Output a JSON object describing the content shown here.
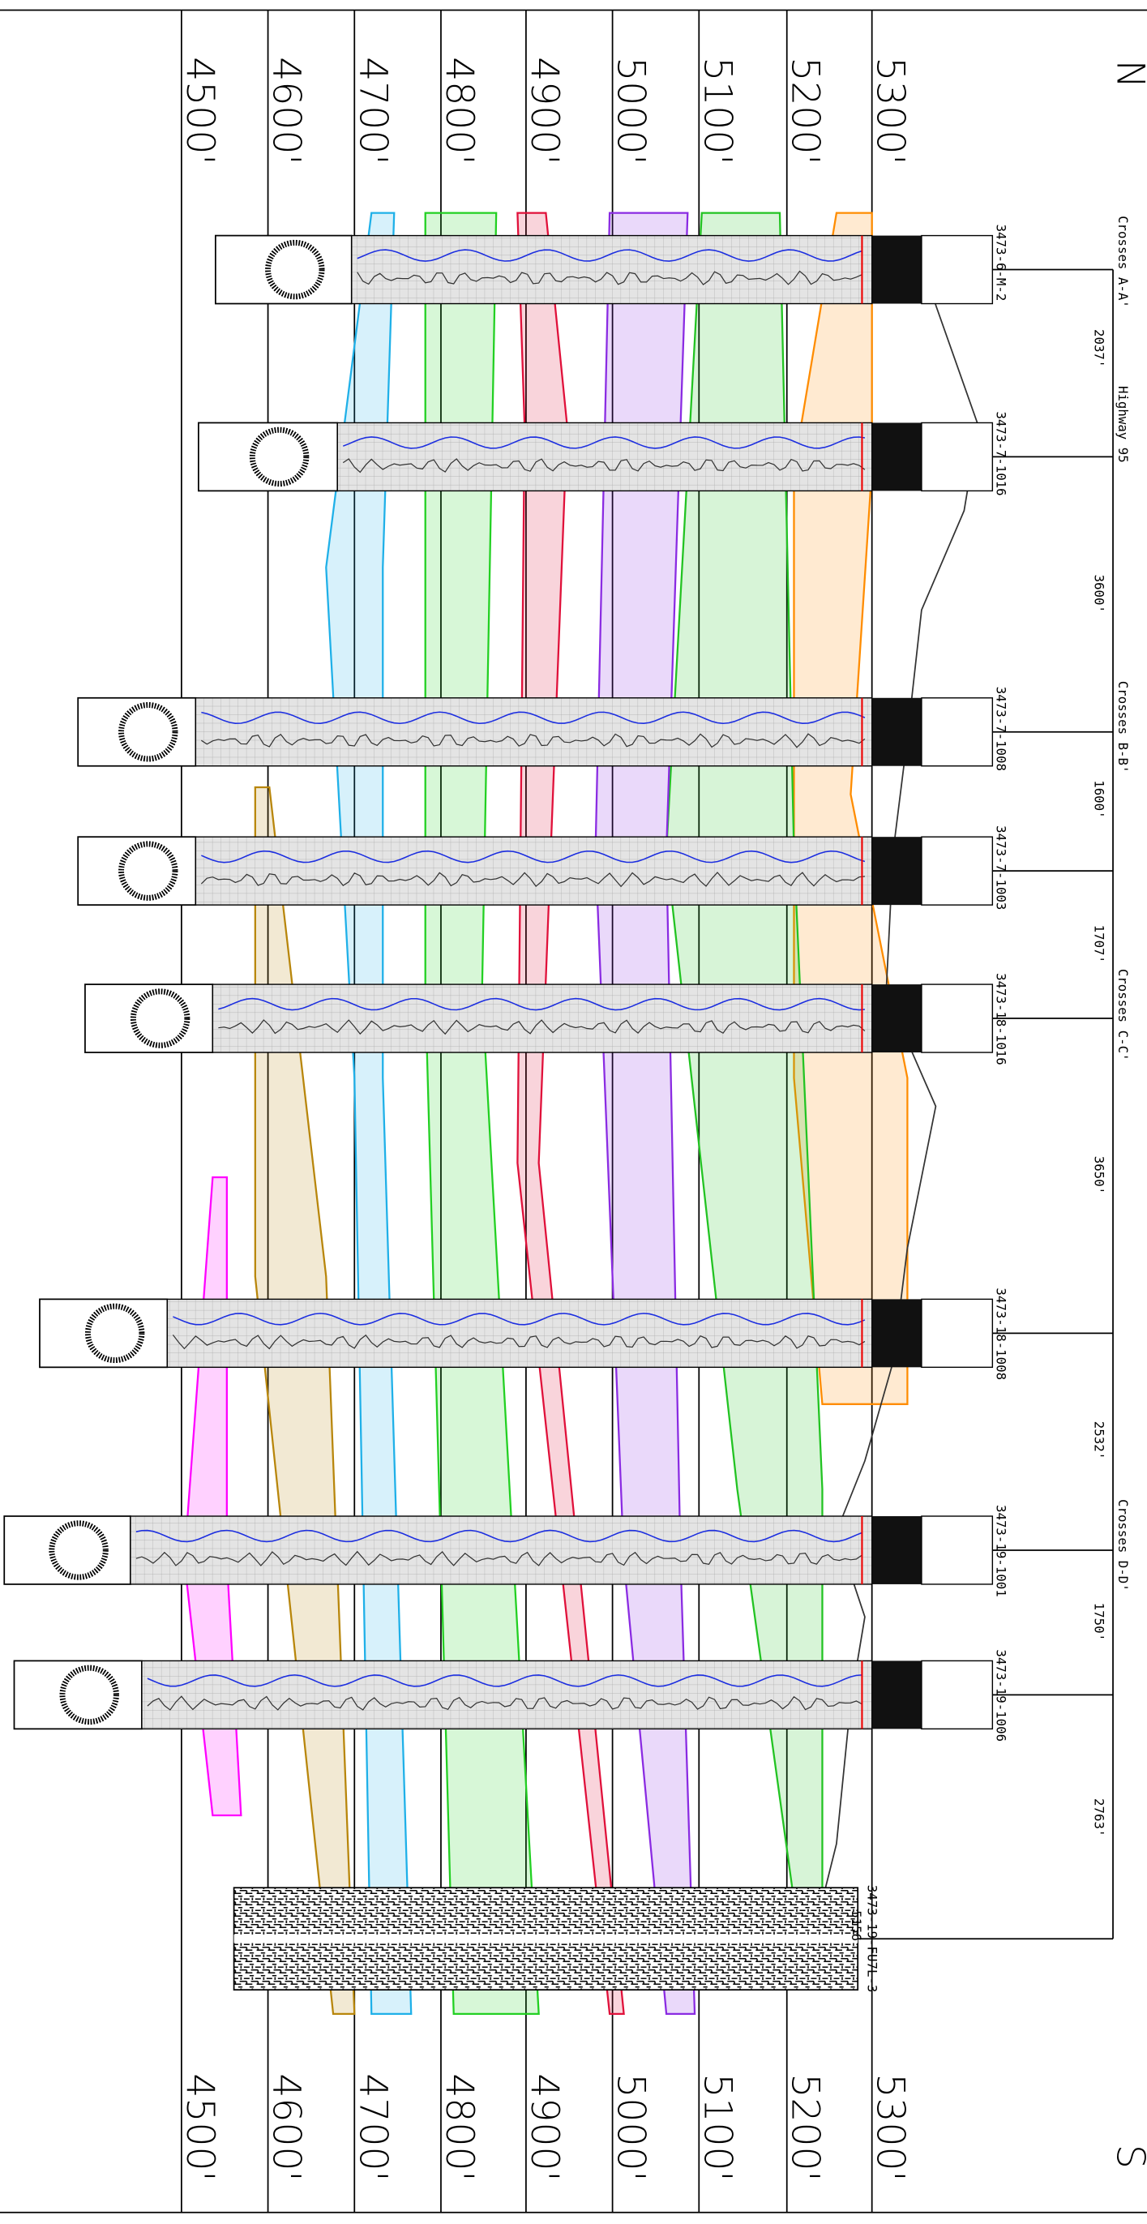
{
  "north": "N",
  "south": "S",
  "elevations": [
    "5300'",
    "5200'",
    "5100'",
    "5000'",
    "4900'",
    "4800'",
    "4700'",
    "4600'",
    "4500'"
  ],
  "wells": [
    {
      "name": "3473-6-M-2"
    },
    {
      "name": "3473-7-1016"
    },
    {
      "name": "3473-7-1008"
    },
    {
      "name": "3473-7-1003"
    },
    {
      "name": "3473-18-1016"
    },
    {
      "name": "3473-18-1008"
    },
    {
      "name": "3473-19-1001"
    },
    {
      "name": "3473-19-1006"
    },
    {
      "name": "3473-19-FU7L-3",
      "note": "5156"
    }
  ],
  "distances": [
    "2037'",
    "3600'",
    "1600'",
    "1707'",
    "3650'",
    "2532'",
    "1750'",
    "2763'"
  ],
  "crossings": [
    "Crosses A-A'",
    "Highway 95",
    "Crosses B-B'",
    "Crosses C-C'",
    "Crosses D-D'"
  ]
}
